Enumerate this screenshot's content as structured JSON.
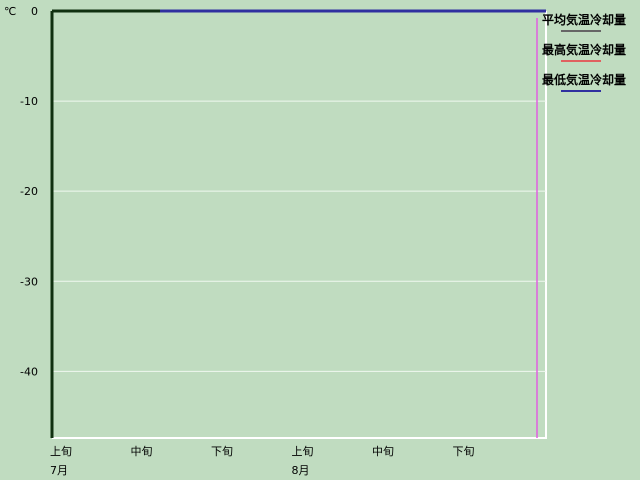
{
  "chart_data": {
    "type": "line",
    "yunit": "℃",
    "ylim": [
      -47.4,
      0
    ],
    "yticks": [
      0,
      -10,
      -20,
      -30,
      -40
    ],
    "categories": [
      "上旬",
      "中旬",
      "下旬",
      "上旬",
      "中旬",
      "下旬"
    ],
    "months": [
      {
        "label": "7月",
        "index": 0
      },
      {
        "label": "8月",
        "index": 3
      }
    ],
    "grid": true,
    "legend_position": "right",
    "series": [
      {
        "name": "平均気温冷却量",
        "color": "#666666",
        "values": [
          0,
          0,
          0,
          0,
          0,
          0
        ]
      },
      {
        "name": "最高気温冷却量",
        "color": "#e06060",
        "values": [
          0,
          0,
          0,
          0,
          0,
          0
        ]
      },
      {
        "name": "最低気温冷却量",
        "color": "#3030a0",
        "values": [
          0,
          0,
          0,
          0,
          0,
          0
        ]
      }
    ],
    "marker_color": "#e060e0"
  }
}
